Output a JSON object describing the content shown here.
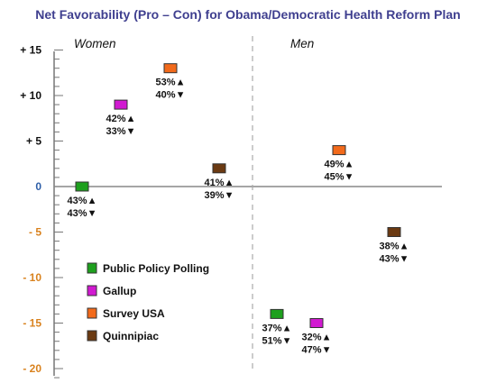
{
  "chart_data": {
    "type": "scatter",
    "title": "Net Favorability (Pro – Con) for Obama/Democratic Health Reform Plan",
    "xlabel": "",
    "ylabel": "",
    "ylim": [
      -22,
      15
    ],
    "y_ticks": [
      {
        "value": 15,
        "label": "+ 15",
        "color": "#111111"
      },
      {
        "value": 10,
        "label": "+ 10",
        "color": "#111111"
      },
      {
        "value": 5,
        "label": "+ 5",
        "color": "#111111"
      },
      {
        "value": 0,
        "label": "0",
        "color": "#2e5fa8"
      },
      {
        "value": -5,
        "label": "- 5",
        "color": "#d9821e"
      },
      {
        "value": -10,
        "label": "- 10",
        "color": "#d9821e"
      },
      {
        "value": -15,
        "label": "- 15",
        "color": "#d9821e"
      },
      {
        "value": -20,
        "label": "- 20",
        "color": "#d9821e"
      }
    ],
    "grid": false,
    "legend_position": "bottom-left",
    "panels": [
      {
        "label": "Women",
        "points": [
          {
            "series": "Public Policy Polling",
            "value": 0,
            "pro": "43%",
            "con": "43%"
          },
          {
            "series": "Gallup",
            "value": 9,
            "pro": "42%",
            "con": "33%"
          },
          {
            "series": "Survey USA",
            "value": 13,
            "pro": "53%",
            "con": "40%"
          },
          {
            "series": "Quinnipiac",
            "value": 2,
            "pro": "41%",
            "con": "39%"
          }
        ]
      },
      {
        "label": "Men",
        "points": [
          {
            "series": "Public Policy Polling",
            "value": -14,
            "pro": "37%",
            "con": "51%"
          },
          {
            "series": "Gallup",
            "value": -15,
            "pro": "32%",
            "con": "47%"
          },
          {
            "series": "Survey USA",
            "value": 4,
            "pro": "49%",
            "con": "45%"
          },
          {
            "series": "Quinnipiac",
            "value": -5,
            "pro": "38%",
            "con": "43%"
          }
        ]
      }
    ],
    "series": [
      {
        "name": "Public Policy Polling",
        "color": "#1ea01e"
      },
      {
        "name": "Gallup",
        "color": "#d11ad1"
      },
      {
        "name": "Survey USA",
        "color": "#f26a1b"
      },
      {
        "name": "Quinnipiac",
        "color": "#6b3a12"
      }
    ]
  }
}
